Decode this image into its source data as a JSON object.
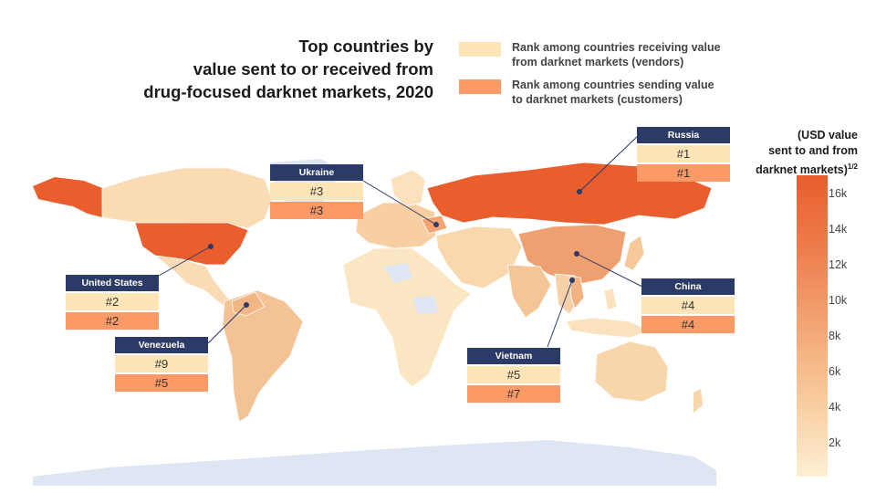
{
  "title": {
    "line1": "Top countries by",
    "line2": "value sent to or received from",
    "line3": "drug-focused darknet markets, 2020"
  },
  "legend": {
    "vendors": {
      "line1": "Rank among countries receiving value",
      "line2": "from darknet markets (vendors)",
      "color": "#fde5b8"
    },
    "customers": {
      "line1": "Rank among countries sending value",
      "line2": "to darknet markets (customers)",
      "color": "#fb9a66"
    }
  },
  "countries": {
    "russia": {
      "name": "Russia",
      "vendor_rank": "#1",
      "customer_rank": "#1"
    },
    "ukraine": {
      "name": "Ukraine",
      "vendor_rank": "#3",
      "customer_rank": "#3"
    },
    "united_states": {
      "name": "United States",
      "vendor_rank": "#2",
      "customer_rank": "#2"
    },
    "china": {
      "name": "China",
      "vendor_rank": "#4",
      "customer_rank": "#4"
    },
    "venezuela": {
      "name": "Venezuela",
      "vendor_rank": "#9",
      "customer_rank": "#5"
    },
    "vietnam": {
      "name": "Vietnam",
      "vendor_rank": "#5",
      "customer_rank": "#7"
    }
  },
  "color_scale": {
    "title_line1": "(USD value",
    "title_line2": "sent to and from",
    "title_line3": "darknet markets)",
    "title_sup": "1/2",
    "ticks": [
      "16k",
      "14k",
      "12k",
      "10k",
      "8k",
      "6k",
      "4k",
      "2k"
    ],
    "color_high": "#ea5d2c",
    "color_low": "#fdefd4"
  },
  "colors": {
    "label_header": "#2b3a67",
    "no_data": "#dde6f2",
    "connector": "#2b3a67"
  }
}
